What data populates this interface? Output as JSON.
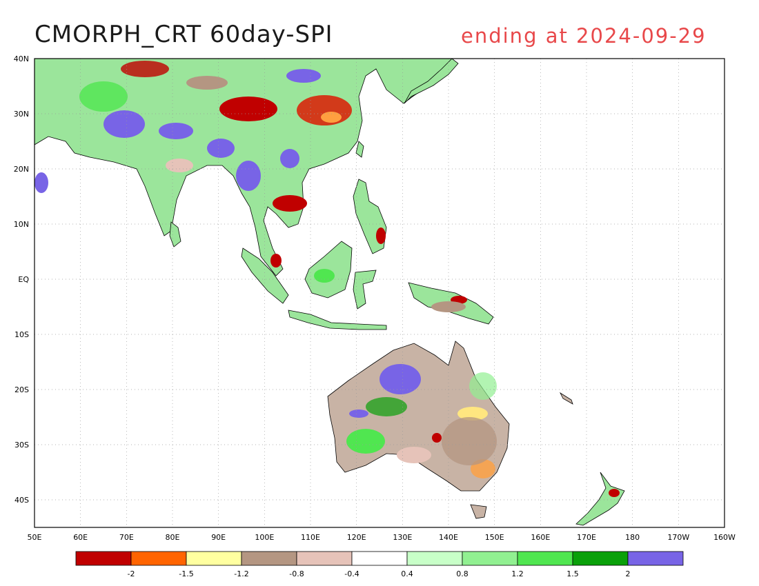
{
  "title": "CMORPH_CRT 60day-SPI",
  "date_label": "ending at 2024-09-29",
  "map": {
    "lat_labels": [
      "40N",
      "30N",
      "20N",
      "10N",
      "EQ",
      "10S",
      "20S",
      "30S",
      "40S"
    ],
    "lon_labels": [
      "50E",
      "60E",
      "70E",
      "80E",
      "90E",
      "100E",
      "110E",
      "120E",
      "130E",
      "140E",
      "150E",
      "160E",
      "170E",
      "180",
      "170W",
      "160W"
    ],
    "extent": {
      "lon_min": 50,
      "lon_max": 200,
      "lat_min": -45,
      "lat_max": 40
    },
    "grid": true
  },
  "legend": {
    "colors": [
      "#c00000",
      "#ff6400",
      "#ffffa0",
      "#b49682",
      "#e6c3b9",
      "#ffffff",
      "#c8ffc8",
      "#91f091",
      "#50e650",
      "#0aa00a",
      "#7864e6"
    ],
    "labels": [
      "-2",
      "-1.5",
      "-1.2",
      "-0.8",
      "-0.4",
      "0.4",
      "0.8",
      "1.2",
      "1.5",
      "2"
    ]
  }
}
